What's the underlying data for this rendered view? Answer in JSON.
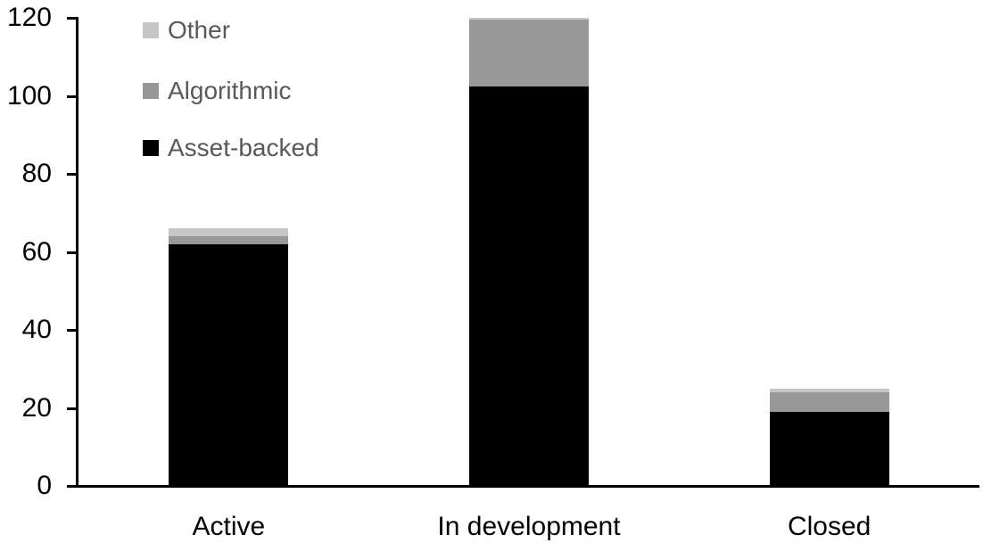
{
  "chart_data": {
    "type": "bar",
    "stacked": true,
    "title": "",
    "xlabel": "",
    "ylabel": "",
    "categories": [
      "Active",
      "In development",
      "Closed"
    ],
    "series": [
      {
        "name": "Asset-backed",
        "color": "#000000",
        "values": [
          62,
          102.5,
          19
        ]
      },
      {
        "name": "Algorithmic",
        "color": "#989898",
        "values": [
          2,
          17,
          5
        ]
      },
      {
        "name": "Other",
        "color": "#c6c6c6",
        "values": [
          2,
          0.5,
          1
        ]
      }
    ],
    "stack_totals": [
      66,
      120,
      25
    ],
    "ylim": [
      0,
      120
    ],
    "yticks": [
      0,
      20,
      40,
      60,
      80,
      100,
      120
    ],
    "grid": false,
    "legend_position": "top-left"
  },
  "axes": {
    "y_tick_labels": [
      "0",
      "20",
      "40",
      "60",
      "80",
      "100",
      "120"
    ],
    "x_labels": [
      "Active",
      "In development",
      "Closed"
    ],
    "axis_color": "#000000",
    "label_color": "#000000"
  },
  "legend": {
    "text_color": "#595959",
    "items": [
      {
        "label": "Other",
        "color": "#c6c6c6"
      },
      {
        "label": "Algorithmic",
        "color": "#989898"
      },
      {
        "label": "Asset-backed",
        "color": "#000000"
      }
    ]
  }
}
